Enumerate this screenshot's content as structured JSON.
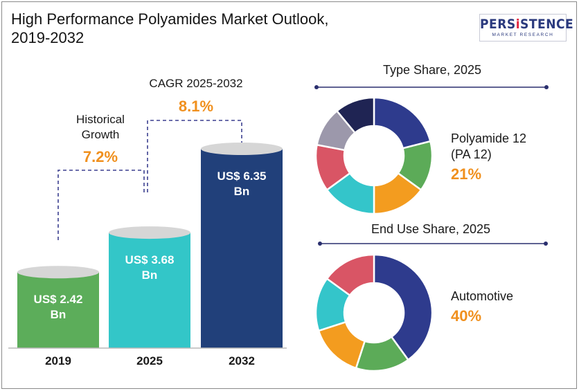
{
  "title_line1": "High Performance Polyamides Market Outlook,",
  "title_line2": "2019-2032",
  "logo": {
    "name_part1": "PERS",
    "name_accent": "i",
    "name_part2": "STENCE",
    "tagline": "MARKET RESEARCH",
    "color": "#2b3a7e",
    "accent_color": "#e3263f"
  },
  "annotations": {
    "historical_label_line1": "Historical",
    "historical_label_line2": "Growth",
    "historical_value": "7.2%",
    "cagr_label": "CAGR 2025-2032",
    "cagr_value": "8.1%",
    "value_color": "#f0901e"
  },
  "chart_data": [
    {
      "type": "bar",
      "categories": [
        "2019",
        "2025",
        "2032"
      ],
      "values": [
        2.42,
        3.68,
        6.35
      ],
      "value_labels_line1": [
        "US$ 2.42",
        "US$ 3.68",
        "US$ 6.35"
      ],
      "value_labels_line2": [
        "Bn",
        "Bn",
        "Bn"
      ],
      "unit": "US$ Bn",
      "colors": [
        "#5cad5a",
        "#33c6c8",
        "#21407a"
      ],
      "ylim": [
        0,
        6.35
      ],
      "grid": false
    },
    {
      "type": "pie",
      "title": "Type Share, 2025",
      "highlight_label_line1": "Polyamide 12",
      "highlight_label_line2": "(PA 12)",
      "highlight_value": "21%",
      "slices": [
        {
          "value": 21,
          "color": "#2e3b8d"
        },
        {
          "value": 14,
          "color": "#5cab58"
        },
        {
          "value": 15,
          "color": "#f39c1f"
        },
        {
          "value": 15,
          "color": "#34c5ca"
        },
        {
          "value": 13,
          "color": "#d95565"
        },
        {
          "value": 11,
          "color": "#9c98ab"
        },
        {
          "value": 11,
          "color": "#1f2453"
        }
      ]
    },
    {
      "type": "pie",
      "title": "End Use Share, 2025",
      "highlight_label": "Automotive",
      "highlight_value": "40%",
      "slices": [
        {
          "value": 40,
          "color": "#2e3b8d"
        },
        {
          "value": 15,
          "color": "#5cab58"
        },
        {
          "value": 15,
          "color": "#f39c1f"
        },
        {
          "value": 15,
          "color": "#34c5ca"
        },
        {
          "value": 15,
          "color": "#d95565"
        }
      ]
    }
  ]
}
